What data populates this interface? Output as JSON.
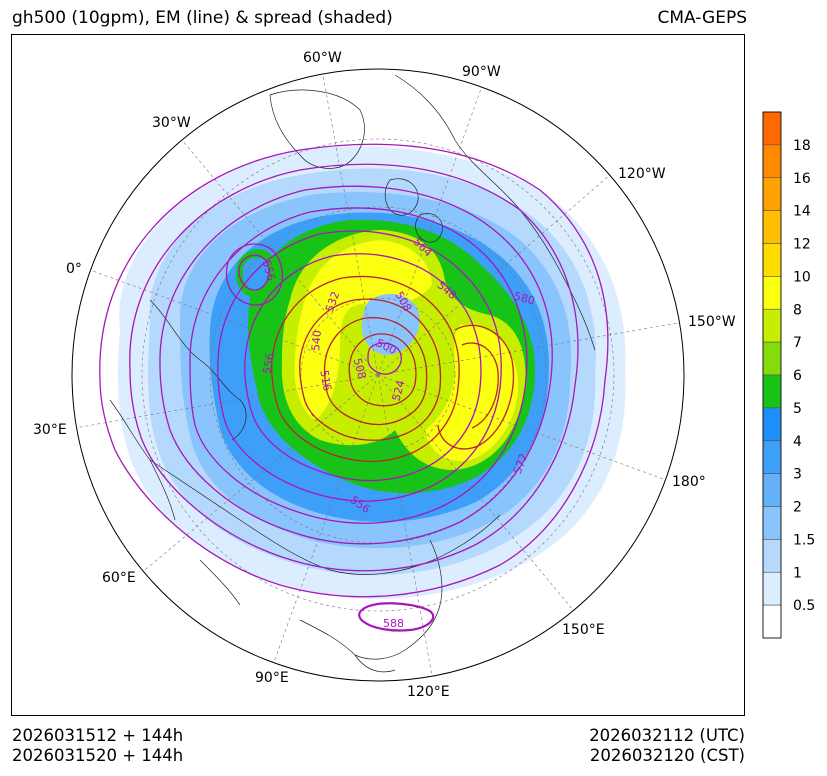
{
  "header": {
    "title_left": "gh500 (10gpm), EM (line) & spread (shaded)",
    "title_right": "CMA-GEPS"
  },
  "footer": {
    "init_utc": "2026031512 + 144h",
    "init_cst": "2026031520 + 144h",
    "valid_utc": "2026032112 (UTC)",
    "valid_cst": "2026032120 (CST)"
  },
  "longitude_labels": [
    "60°W",
    "90°W",
    "30°W",
    "120°W",
    "0°",
    "150°W",
    "30°E",
    "180°",
    "60°E",
    "150°E",
    "90°E",
    "120°E"
  ],
  "contour_labels": [
    "556",
    "564",
    "548",
    "580",
    "532",
    "508",
    "540",
    "500",
    "556",
    "516",
    "508",
    "524",
    "572",
    "556",
    "588"
  ],
  "colorbar": {
    "labels": [
      "18",
      "16",
      "14",
      "12",
      "10",
      "8",
      "7",
      "6",
      "5",
      "4",
      "3",
      "2",
      "1.5",
      "1",
      "0.5"
    ],
    "colors": [
      "#ff6a00",
      "#ff8a00",
      "#ffa200",
      "#ffbe00",
      "#ffdc00",
      "#fbff10",
      "#c6ee00",
      "#86dc0a",
      "#18c318",
      "#1e8ef8",
      "#3e9ff8",
      "#64b1fa",
      "#8ac4fc",
      "#b4d9fd",
      "#dcedff",
      "#ffffff"
    ]
  },
  "colors": {
    "contour": "#a817b8",
    "contour_dark": "#b8262c",
    "spread_level_1": "#dcedff",
    "spread_level_2": "#b4d9fd",
    "spread_level_3": "#8ac4fc",
    "spread_level_4": "#3e9ff8",
    "spread_level_5": "#18c318",
    "spread_level_6": "#c6ee00",
    "spread_level_7": "#fbff10"
  }
}
